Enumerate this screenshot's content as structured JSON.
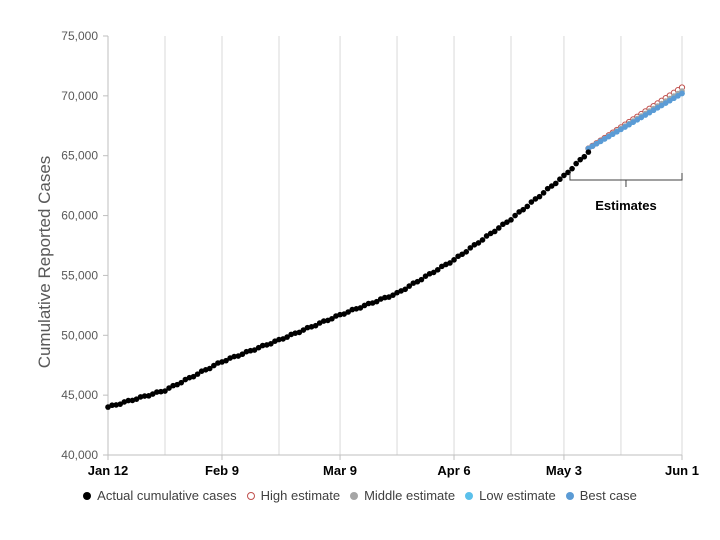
{
  "chart_data": {
    "type": "scatter",
    "title": "",
    "ylabel": "Cumulative Reported Cases",
    "xlabel": "",
    "ylim": [
      40000,
      75000
    ],
    "yticks": [
      40000,
      45000,
      50000,
      55000,
      60000,
      65000,
      70000,
      75000
    ],
    "ytick_labels": [
      "40,000",
      "45,000",
      "50,000",
      "55,000",
      "60,000",
      "65,000",
      "70,000",
      "75,000"
    ],
    "xticks": [
      {
        "date": "2020-01-12",
        "label": "Jan 12"
      },
      {
        "date": "2020-02-09",
        "label": "Feb 9"
      },
      {
        "date": "2020-03-09",
        "label": "Mar 9"
      },
      {
        "date": "2020-04-06",
        "label": "Apr 6"
      },
      {
        "date": "2020-05-03",
        "label": "May 3"
      },
      {
        "date": "2020-06-01",
        "label": "Jun 1"
      }
    ],
    "xlim": [
      "2020-01-12",
      "2020-06-01"
    ],
    "x_minor_ticks": [
      "2020-01-26",
      "2020-02-23",
      "2020-03-23",
      "2020-04-20",
      "2020-05-17"
    ],
    "grid": "vertical",
    "legend_position": "bottom",
    "annotation": {
      "text": "Estimates",
      "from": "2020-05-03",
      "to": "2020-06-01"
    },
    "series": [
      {
        "name": "Actual cumulative cases",
        "color": "#000000",
        "marker": "filled",
        "points": [
          [
            "2020-01-12",
            44000
          ],
          [
            "2020-01-26",
            45400
          ],
          [
            "2020-02-09",
            47800
          ],
          [
            "2020-02-23",
            49600
          ],
          [
            "2020-03-09",
            51700
          ],
          [
            "2020-03-23",
            53500
          ],
          [
            "2020-04-06",
            56300
          ],
          [
            "2020-04-20",
            59700
          ],
          [
            "2020-05-03",
            63300
          ],
          [
            "2020-05-09",
            65300
          ]
        ]
      },
      {
        "name": "High estimate",
        "color": "#c0504d",
        "marker": "open",
        "points": [
          [
            "2020-05-09",
            65600
          ],
          [
            "2020-06-01",
            70700
          ]
        ]
      },
      {
        "name": "Middle estimate",
        "color": "#a5a5a5",
        "marker": "filled",
        "points": [
          [
            "2020-05-09",
            65600
          ],
          [
            "2020-06-01",
            70400
          ]
        ]
      },
      {
        "name": "Low estimate",
        "color": "#5bc0eb",
        "marker": "filled",
        "points": [
          [
            "2020-05-09",
            65600
          ],
          [
            "2020-06-01",
            70200
          ]
        ]
      },
      {
        "name": "Best case",
        "color": "#5b9bd5",
        "marker": "filled",
        "points": [
          [
            "2020-05-09",
            65600
          ],
          [
            "2020-06-01",
            70200
          ]
        ]
      }
    ]
  }
}
